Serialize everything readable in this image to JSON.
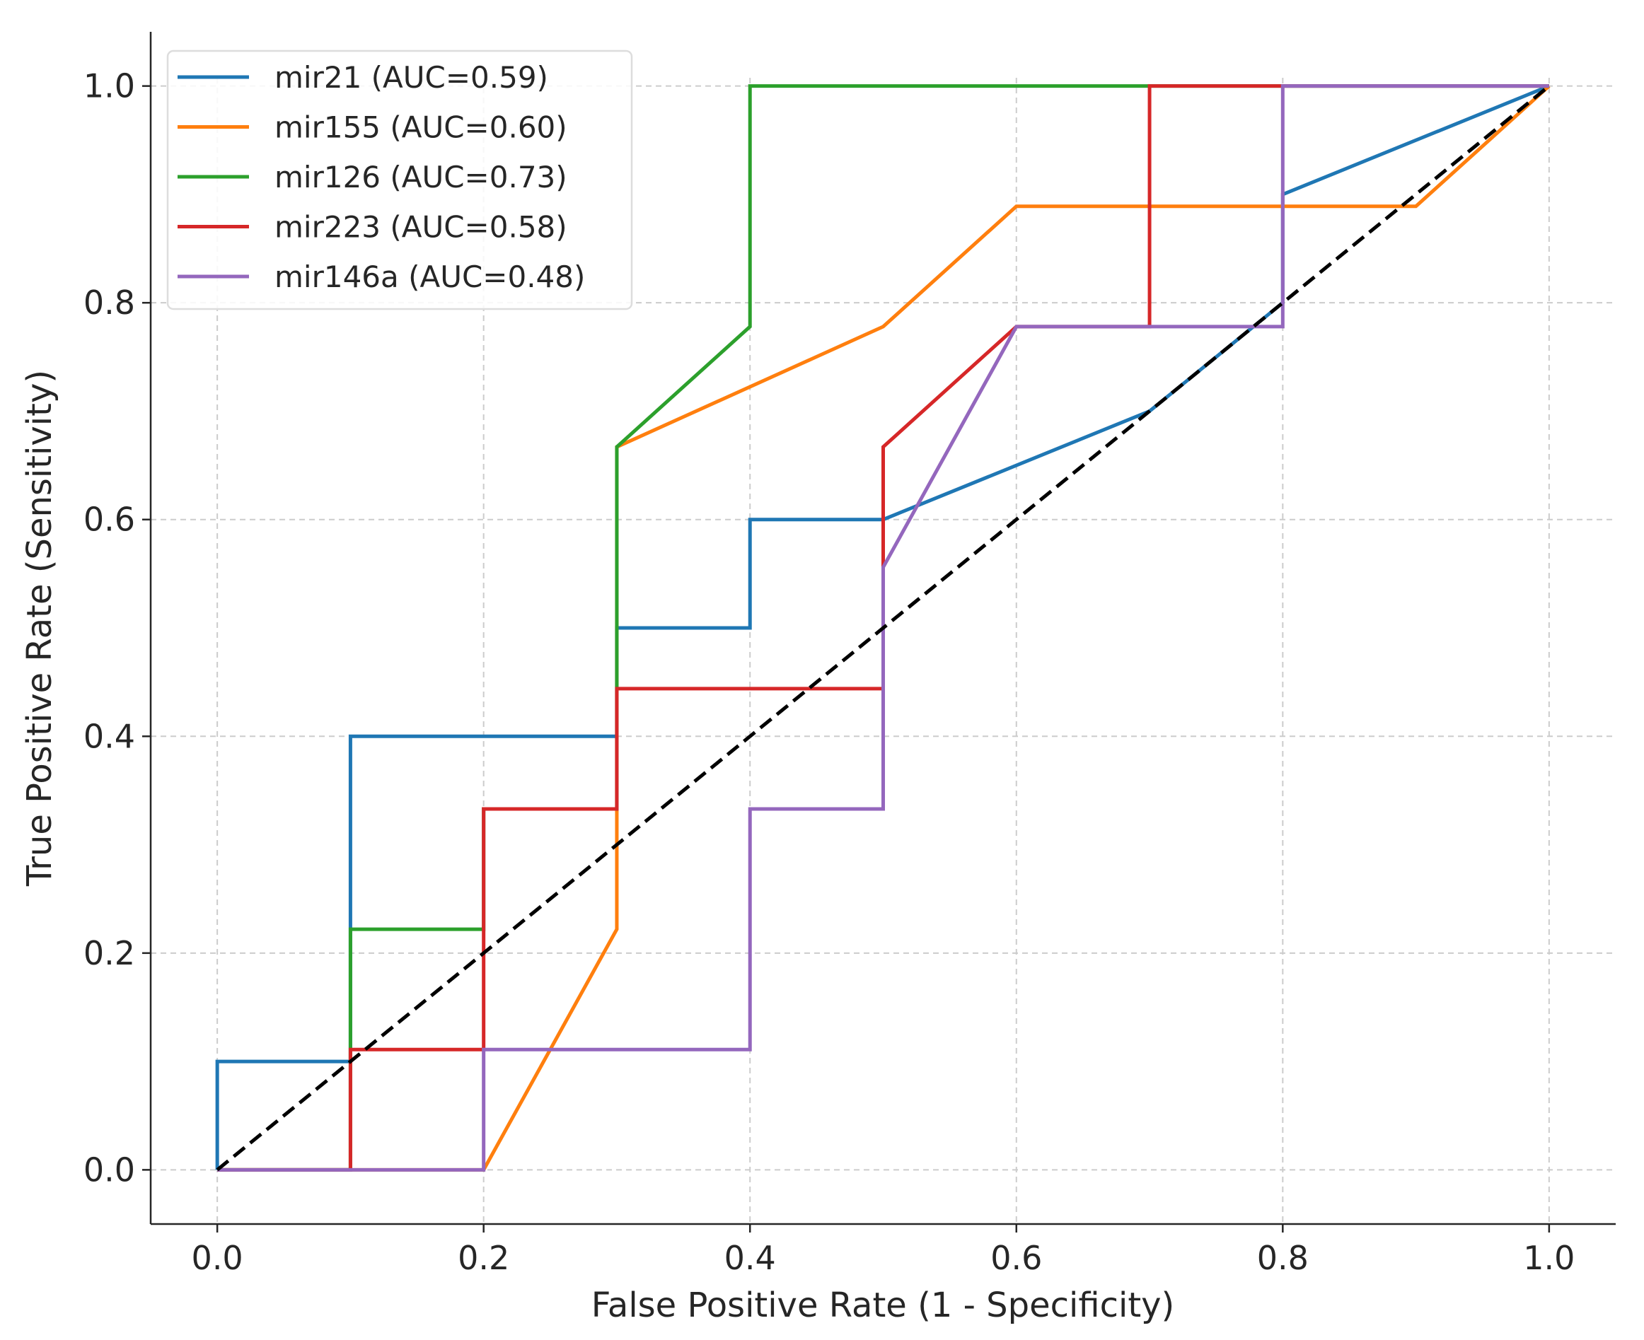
{
  "chart_data": {
    "type": "line",
    "title": "",
    "xlabel": "False Positive Rate (1 - Specificity)",
    "ylabel": "True Positive Rate (Sensitivity)",
    "xlim": [
      -0.05,
      1.05
    ],
    "ylim": [
      -0.05,
      1.05
    ],
    "grid": true,
    "legend_position": "top-left",
    "xticks": [
      "0.0",
      "0.2",
      "0.4",
      "0.6",
      "0.8",
      "1.0"
    ],
    "yticks": [
      "0.0",
      "0.2",
      "0.4",
      "0.6",
      "0.8",
      "1.0"
    ],
    "series": [
      {
        "name": "mir21 (AUC=0.59)",
        "color": "#1f77b4",
        "x": [
          0,
          0,
          0.1,
          0.1,
          0.3,
          0.3,
          0.4,
          0.4,
          0.5,
          0.7,
          0.8,
          0.8,
          1.0
        ],
        "y": [
          0,
          0.1,
          0.1,
          0.4,
          0.4,
          0.5,
          0.5,
          0.6,
          0.6,
          0.7,
          0.8,
          0.9,
          1.0
        ]
      },
      {
        "name": "mir155 (AUC=0.60)",
        "color": "#ff7f0e",
        "x": [
          0,
          0.2,
          0.3,
          0.3,
          0.5,
          0.6,
          0.9,
          1.0
        ],
        "y": [
          0,
          0,
          0.222,
          0.667,
          0.778,
          0.889,
          0.889,
          1.0
        ]
      },
      {
        "name": "mir126 (AUC=0.73)",
        "color": "#2ca02c",
        "x": [
          0,
          0.1,
          0.1,
          0.2,
          0.2,
          0.3,
          0.3,
          0.4,
          0.4,
          1.0
        ],
        "y": [
          0,
          0,
          0.222,
          0.222,
          0.333,
          0.333,
          0.667,
          0.778,
          1.0,
          1.0
        ]
      },
      {
        "name": "mir223 (AUC=0.58)",
        "color": "#d62728",
        "x": [
          0,
          0.1,
          0.1,
          0.2,
          0.2,
          0.3,
          0.3,
          0.5,
          0.5,
          0.6,
          0.7,
          0.7,
          1.0
        ],
        "y": [
          0,
          0,
          0.111,
          0.111,
          0.333,
          0.333,
          0.444,
          0.444,
          0.667,
          0.778,
          0.778,
          1.0,
          1.0
        ]
      },
      {
        "name": "mir146a (AUC=0.48)",
        "color": "#9467bd",
        "x": [
          0,
          0.2,
          0.2,
          0.4,
          0.4,
          0.5,
          0.5,
          0.6,
          0.8,
          0.8,
          1.0
        ],
        "y": [
          0,
          0,
          0.111,
          0.111,
          0.333,
          0.333,
          0.556,
          0.778,
          0.778,
          1.0,
          1.0
        ]
      }
    ],
    "reference_line": {
      "x": [
        0,
        1
      ],
      "y": [
        0,
        1
      ],
      "color": "#000000",
      "style": "dashed"
    }
  }
}
